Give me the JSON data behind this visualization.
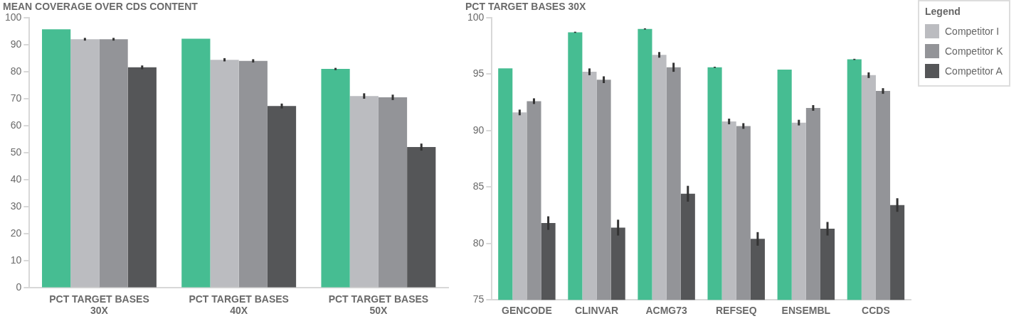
{
  "chart_data": [
    {
      "type": "bar",
      "title": "MEAN COVERAGE OVER CDS CONTENT",
      "categories": [
        "PCT TARGET BASES 30X",
        "PCT TARGET BASES 40X",
        "PCT TARGET BASES 50X"
      ],
      "ylim": [
        0,
        100
      ],
      "yticks": [
        0,
        10,
        20,
        30,
        40,
        50,
        60,
        70,
        80,
        90,
        100
      ],
      "grid": false,
      "series": [
        {
          "color": "#46bd92",
          "values": [
            95.7,
            92.2,
            81.0
          ],
          "errors": [
            null,
            null,
            0.4
          ]
        },
        {
          "color": "#bbbcc0",
          "values": [
            92.0,
            84.4,
            71.0
          ],
          "errors": [
            0.5,
            0.6,
            1.0
          ]
        },
        {
          "color": "#939498",
          "values": [
            92.0,
            84.0,
            70.5
          ],
          "errors": [
            0.5,
            0.6,
            1.0
          ]
        },
        {
          "color": "#555658",
          "values": [
            81.6,
            67.3,
            52.1
          ],
          "errors": [
            0.7,
            0.9,
            1.3
          ]
        }
      ]
    },
    {
      "type": "bar",
      "title": "PCT TARGET BASES 30X",
      "categories": [
        "GENCODE",
        "CLINVAR",
        "ACMG73",
        "REFSEQ",
        "ENSEMBL",
        "CCDS"
      ],
      "ylim": [
        75,
        100
      ],
      "yticks": [
        75,
        80,
        85,
        90,
        95,
        100
      ],
      "grid": false,
      "legend": "right",
      "legend_title": "Legend",
      "series": [
        {
          "color": "#46bd92",
          "values": [
            95.5,
            98.7,
            99.0,
            95.6,
            95.4,
            96.3
          ],
          "errors": [
            null,
            0.05,
            0.05,
            0.05,
            null,
            0.05
          ]
        },
        {
          "name": "Competitor I",
          "color": "#bbbcc0",
          "values": [
            91.6,
            95.2,
            96.7,
            90.8,
            90.7,
            94.9
          ],
          "errors": [
            0.25,
            0.3,
            0.25,
            0.25,
            0.25,
            0.25
          ]
        },
        {
          "name": "Competitor K",
          "color": "#939498",
          "values": [
            92.6,
            94.5,
            95.6,
            90.4,
            92.0,
            93.5
          ],
          "errors": [
            0.25,
            0.3,
            0.4,
            0.25,
            0.25,
            0.25
          ]
        },
        {
          "name": "Competitor A",
          "color": "#555658",
          "values": [
            81.8,
            81.4,
            84.4,
            80.4,
            81.3,
            83.4
          ],
          "errors": [
            0.6,
            0.7,
            0.7,
            0.6,
            0.6,
            0.6
          ]
        }
      ]
    }
  ]
}
